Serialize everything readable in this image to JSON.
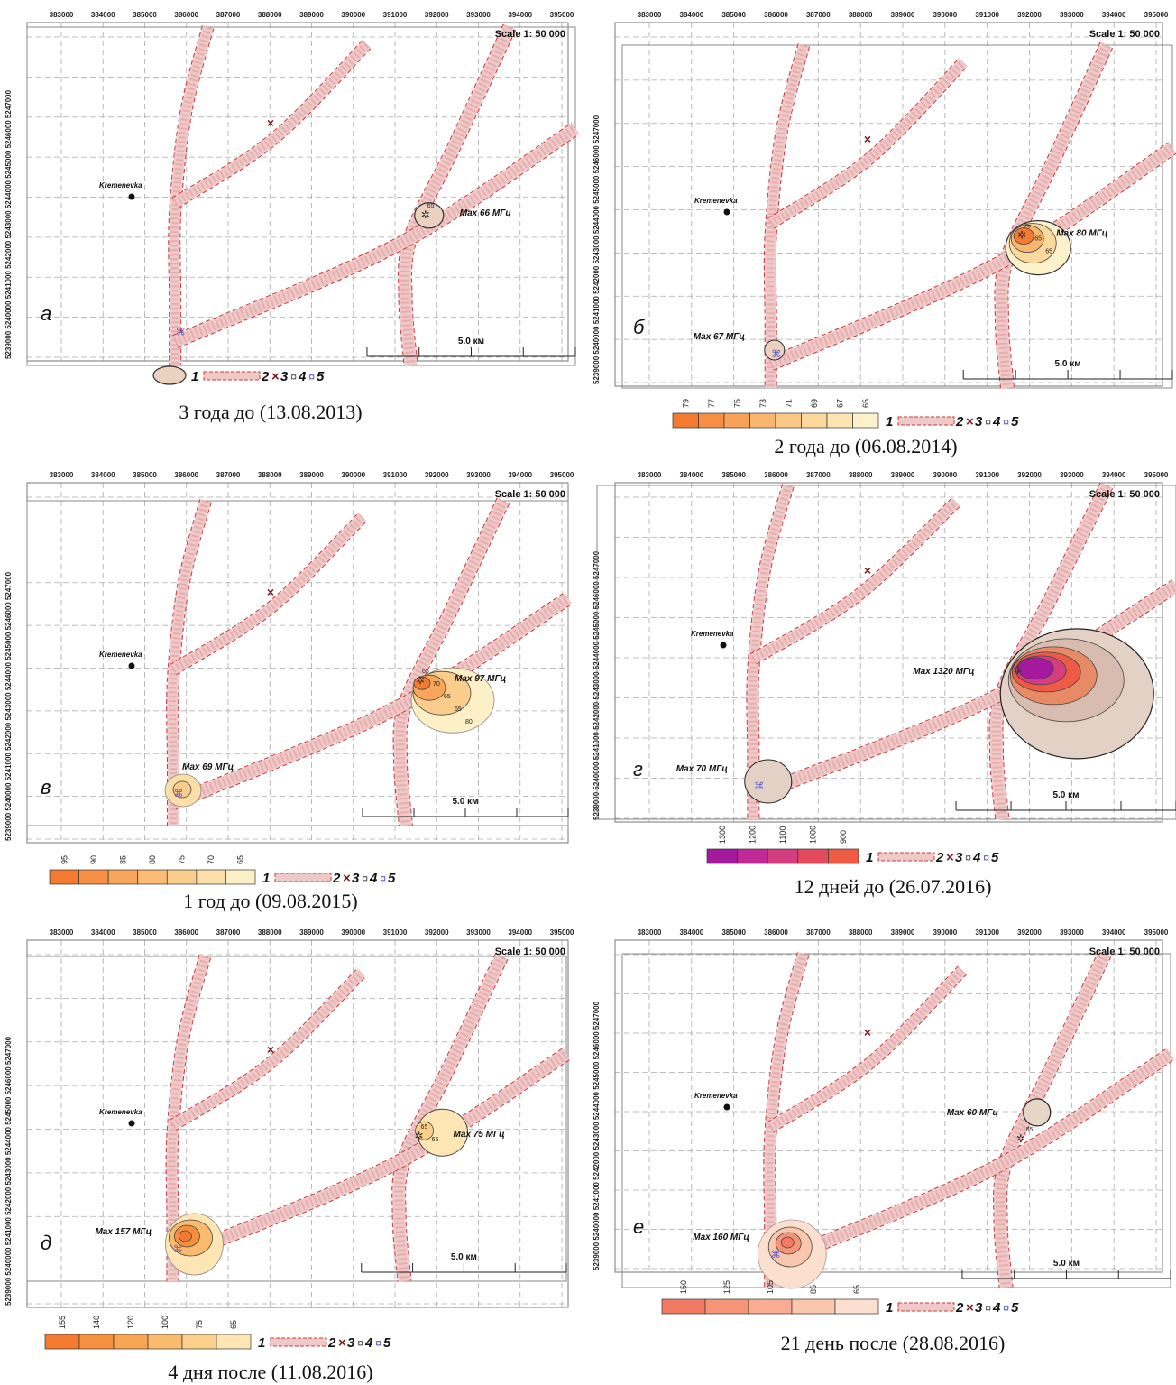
{
  "common": {
    "x_ticks": [
      "383000",
      "384000",
      "385000",
      "386000",
      "387000",
      "388000",
      "389000",
      "390000",
      "391000",
      "392000",
      "393000",
      "394000",
      "395000"
    ],
    "y_ticks": [
      "5239000",
      "5240000",
      "5241000",
      "5242000",
      "5243000",
      "5244000",
      "5245000",
      "5246000",
      "5247000"
    ],
    "scale_label": "Scale 1: 50 000",
    "scalebar_label": "5.0 км",
    "settlement": "Kremenevka",
    "legend_items": [
      {
        "num": "1",
        "icon": "contour-area-icon"
      },
      {
        "num": "2",
        "icon": "pipeline-corridor-icon"
      },
      {
        "num": "3",
        "icon": "cross-marker-icon"
      },
      {
        "num": "4",
        "icon": "star-marker-icon"
      },
      {
        "num": "5",
        "icon": "blue-star-marker-icon"
      }
    ],
    "colors": {
      "corridor_fill": "#efc8c8",
      "corridor_edge": "#cc3a3a",
      "grid": "#aaaaaa"
    }
  },
  "panels": [
    {
      "letter": "а",
      "caption": "3 года до (13.08.2013)",
      "labels": [
        {
          "text": "Max 66 МГц",
          "tag": "label-max-east"
        }
      ],
      "contour_labels": [
        "65"
      ],
      "legend_scale": [],
      "legend_colors": []
    },
    {
      "letter": "б",
      "caption": "2 года до (06.08.2014)",
      "labels": [
        {
          "text": "Max 80 МГц",
          "tag": "label-max-east"
        },
        {
          "text": "Max 67 МГц",
          "tag": "label-max-west"
        }
      ],
      "contour_labels": [
        "75",
        "65",
        "65"
      ],
      "legend_scale": [
        "79",
        "77",
        "75",
        "73",
        "71",
        "69",
        "67",
        "65"
      ],
      "legend_colors": [
        "#f47a30",
        "#f68e44",
        "#f8a258",
        "#f9b66e",
        "#fac884",
        "#fbd89c",
        "#fce5b3",
        "#fdf1cc"
      ]
    },
    {
      "letter": "в",
      "caption": "1 год до (09.08.2015)",
      "labels": [
        {
          "text": "Max 97 МГц",
          "tag": "label-max-east"
        },
        {
          "text": "Max 69 МГц",
          "tag": "label-max-west"
        }
      ],
      "contour_labels": [
        "65",
        "70",
        "65",
        "65",
        "80"
      ],
      "legend_scale": [
        "95",
        "90",
        "85",
        "80",
        "75",
        "70",
        "65"
      ],
      "legend_colors": [
        "#f47a30",
        "#f69045",
        "#f8a65c",
        "#fabb74",
        "#fbcd8d",
        "#fcdea8",
        "#fdefc6"
      ]
    },
    {
      "letter": "г",
      "caption": "12 дней до (26.07.2016)",
      "labels": [
        {
          "text": "Max 1320 МГц",
          "tag": "label-max-east"
        },
        {
          "text": "Max 70 МГц",
          "tag": "label-max-west"
        }
      ],
      "contour_labels": [],
      "legend_scale": [
        "1300",
        "1200",
        "1100",
        "1000",
        "900"
      ],
      "legend_colors": [
        "#a5199f",
        "#c02a96",
        "#d43d7e",
        "#e44a5e",
        "#ef5a45"
      ]
    },
    {
      "letter": "д",
      "caption": "4 дня после (11.08.2016)",
      "labels": [
        {
          "text": "Max 75 МГц",
          "tag": "label-max-east"
        },
        {
          "text": "Max 157 МГц",
          "tag": "label-max-west"
        }
      ],
      "contour_labels": [
        "65",
        "65"
      ],
      "legend_scale": [
        "155",
        "140",
        "120",
        "100",
        "75",
        "65"
      ],
      "legend_colors": [
        "#f47a30",
        "#f6903f",
        "#f8a654",
        "#fabb6e",
        "#fbd08c",
        "#fde6b4"
      ]
    },
    {
      "letter": "е",
      "caption": "21 день после (28.08.2016)",
      "labels": [
        {
          "text": "Max 60 МГц",
          "tag": "label-max-east"
        },
        {
          "text": "Max 160 МГц",
          "tag": "label-max-west"
        }
      ],
      "contour_labels": [
        "105"
      ],
      "legend_scale": [
        "150",
        "125",
        "105",
        "85",
        "65"
      ],
      "legend_colors": [
        "#f37a62",
        "#f69478",
        "#f8ad92",
        "#fac6ae",
        "#fcdfcf"
      ]
    }
  ]
}
